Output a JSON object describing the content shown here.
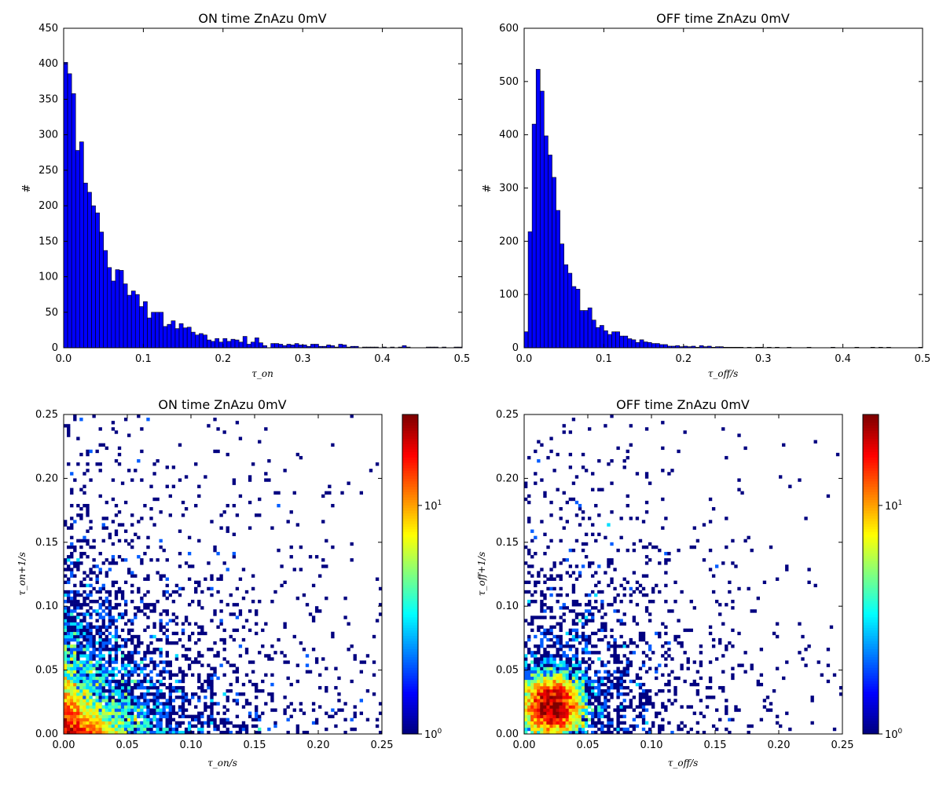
{
  "chart_data": [
    {
      "type": "bar",
      "subtype": "histogram",
      "title": "ON time ZnAzu 0mV",
      "xlabel": "τ_on",
      "ylabel": "#",
      "xlim": [
        0,
        0.5
      ],
      "ylim": [
        0,
        450
      ],
      "xticks": [
        "0.0",
        "0.1",
        "0.2",
        "0.3",
        "0.4",
        "0.5"
      ],
      "yticks": [
        "0",
        "50",
        "100",
        "150",
        "200",
        "250",
        "300",
        "350",
        "400",
        "450"
      ],
      "bin_width": 0.005,
      "bar_color": "#0000ff",
      "values": [
        402,
        386,
        358,
        278,
        290,
        232,
        219,
        200,
        190,
        163,
        137,
        113,
        94,
        110,
        109,
        90,
        74,
        80,
        75,
        58,
        65,
        42,
        50,
        50,
        50,
        30,
        33,
        38,
        27,
        34,
        28,
        29,
        22,
        18,
        20,
        18,
        11,
        9,
        13,
        8,
        13,
        9,
        12,
        11,
        8,
        16,
        5,
        8,
        14,
        7,
        3,
        0,
        6,
        6,
        5,
        3,
        5,
        4,
        6,
        4,
        4,
        2,
        5,
        5,
        2,
        2,
        4,
        3,
        1,
        5,
        4,
        1,
        2,
        2,
        0,
        1,
        1,
        1,
        1,
        0,
        1,
        0,
        1,
        0,
        1,
        3,
        1,
        0,
        0,
        0,
        0,
        1,
        1,
        1,
        0,
        1,
        0,
        0,
        1,
        1
      ]
    },
    {
      "type": "bar",
      "subtype": "histogram",
      "title": "OFF time ZnAzu 0mV",
      "xlabel": "τ_off/s",
      "ylabel": "#",
      "xlim": [
        0,
        0.5
      ],
      "ylim": [
        0,
        600
      ],
      "xticks": [
        "0.0",
        "0.1",
        "0.2",
        "0.3",
        "0.4",
        "0.5"
      ],
      "yticks": [
        "0",
        "100",
        "200",
        "300",
        "400",
        "500",
        "600"
      ],
      "bin_width": 0.005,
      "bar_color": "#0000ff",
      "values": [
        30,
        218,
        420,
        523,
        482,
        398,
        362,
        320,
        258,
        195,
        156,
        140,
        115,
        110,
        70,
        70,
        75,
        52,
        38,
        42,
        32,
        25,
        30,
        30,
        22,
        22,
        17,
        15,
        10,
        15,
        11,
        10,
        8,
        8,
        6,
        6,
        3,
        3,
        4,
        2,
        3,
        2,
        3,
        1,
        4,
        2,
        3,
        1,
        2,
        2,
        1,
        1,
        1,
        1,
        1,
        0,
        1,
        0,
        1,
        1,
        0,
        1,
        0,
        1,
        0,
        0,
        1,
        0,
        0,
        0,
        0,
        1,
        0,
        0,
        0,
        0,
        0,
        1,
        0,
        0,
        0,
        0,
        0,
        1,
        0,
        0,
        0,
        1,
        0,
        1,
        0,
        1,
        0,
        0,
        0,
        0,
        0,
        0,
        0,
        1
      ]
    },
    {
      "type": "heatmap",
      "title": "ON time ZnAzu 0mV",
      "xlabel": "τ_on/s",
      "ylabel": "τ_on+1/s",
      "xlim": [
        0,
        0.25
      ],
      "ylim": [
        0,
        0.25
      ],
      "xticks": [
        "0.00",
        "0.05",
        "0.10",
        "0.15",
        "0.20",
        "0.25"
      ],
      "yticks": [
        "0.00",
        "0.05",
        "0.10",
        "0.15",
        "0.20",
        "0.25"
      ],
      "colorbar": {
        "scale": "log",
        "range": [
          1,
          25
        ],
        "ticks": [
          "10^0",
          "10^1"
        ],
        "colormap": "jet"
      },
      "bins": 100,
      "distribution": "dense near origin, decaying along both axes",
      "center": [
        0.005,
        0.005
      ],
      "peak_count": 25
    },
    {
      "type": "heatmap",
      "title": "OFF time ZnAzu 0mV",
      "xlabel": "τ_off/s",
      "ylabel": "τ_off+1/s",
      "xlim": [
        0,
        0.25
      ],
      "ylim": [
        0,
        0.25
      ],
      "xticks": [
        "0.00",
        "0.05",
        "0.10",
        "0.15",
        "0.20",
        "0.25"
      ],
      "yticks": [
        "0.00",
        "0.05",
        "0.10",
        "0.15",
        "0.20",
        "0.25"
      ],
      "colorbar": {
        "scale": "log",
        "range": [
          1,
          25
        ],
        "ticks": [
          "10^0",
          "10^1"
        ],
        "colormap": "jet"
      },
      "bins": 100,
      "distribution": "blob centered near (0.02, 0.02)",
      "center": [
        0.022,
        0.022
      ],
      "peak_count": 22
    }
  ]
}
